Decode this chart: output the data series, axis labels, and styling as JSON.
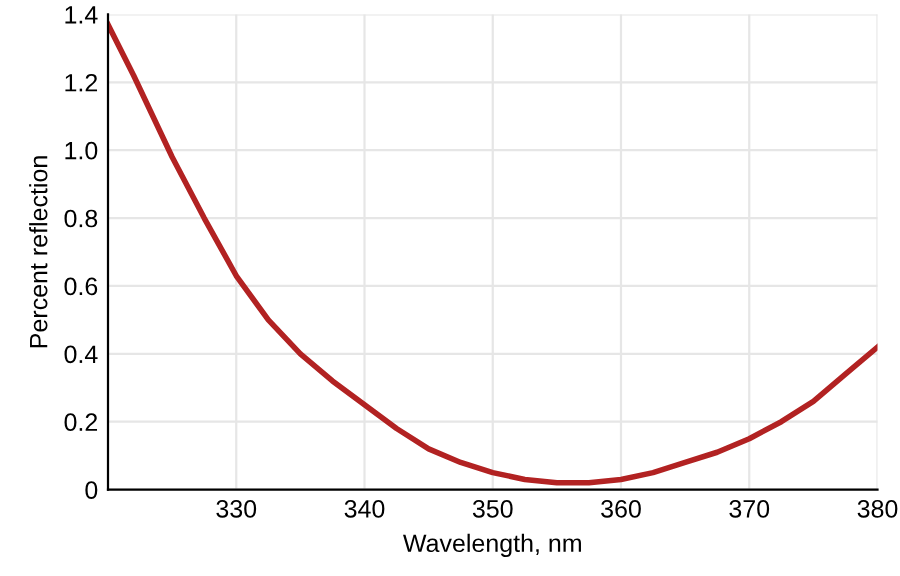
{
  "chart_data": {
    "type": "line",
    "xlabel": "Wavelength, nm",
    "ylabel": "Percent reflection",
    "x": [
      320,
      322,
      325,
      327.5,
      330,
      332.5,
      335,
      337.5,
      340,
      342.5,
      345,
      347.5,
      350,
      352.5,
      355,
      357.5,
      360,
      362.5,
      365,
      367.5,
      370,
      372.5,
      375,
      377.5,
      380
    ],
    "series": [
      {
        "color": "#b22222",
        "values": [
          1.37,
          1.22,
          0.98,
          0.8,
          0.63,
          0.5,
          0.4,
          0.32,
          0.25,
          0.18,
          0.12,
          0.08,
          0.05,
          0.03,
          0.02,
          0.02,
          0.03,
          0.05,
          0.08,
          0.11,
          0.15,
          0.2,
          0.26,
          0.34,
          0.42
        ]
      }
    ],
    "xlim": [
      320,
      380
    ],
    "xticks": [
      330,
      340,
      350,
      360,
      370,
      380
    ],
    "ylim": [
      0,
      1.4
    ],
    "yticks": [
      0,
      {
        "value": 0.2,
        "label": "0.2"
      },
      {
        "value": 0.4,
        "label": "0.4"
      },
      {
        "value": 0.6,
        "label": "0.6"
      },
      {
        "value": 0.8,
        "label": "0.8"
      },
      {
        "value": 1.0,
        "label": "1.0"
      },
      {
        "value": 1.2,
        "label": "1.2"
      },
      {
        "value": 1.4,
        "label": "1.4"
      }
    ],
    "grid": true,
    "legend": false,
    "marker": "none",
    "line_style": "solid"
  }
}
